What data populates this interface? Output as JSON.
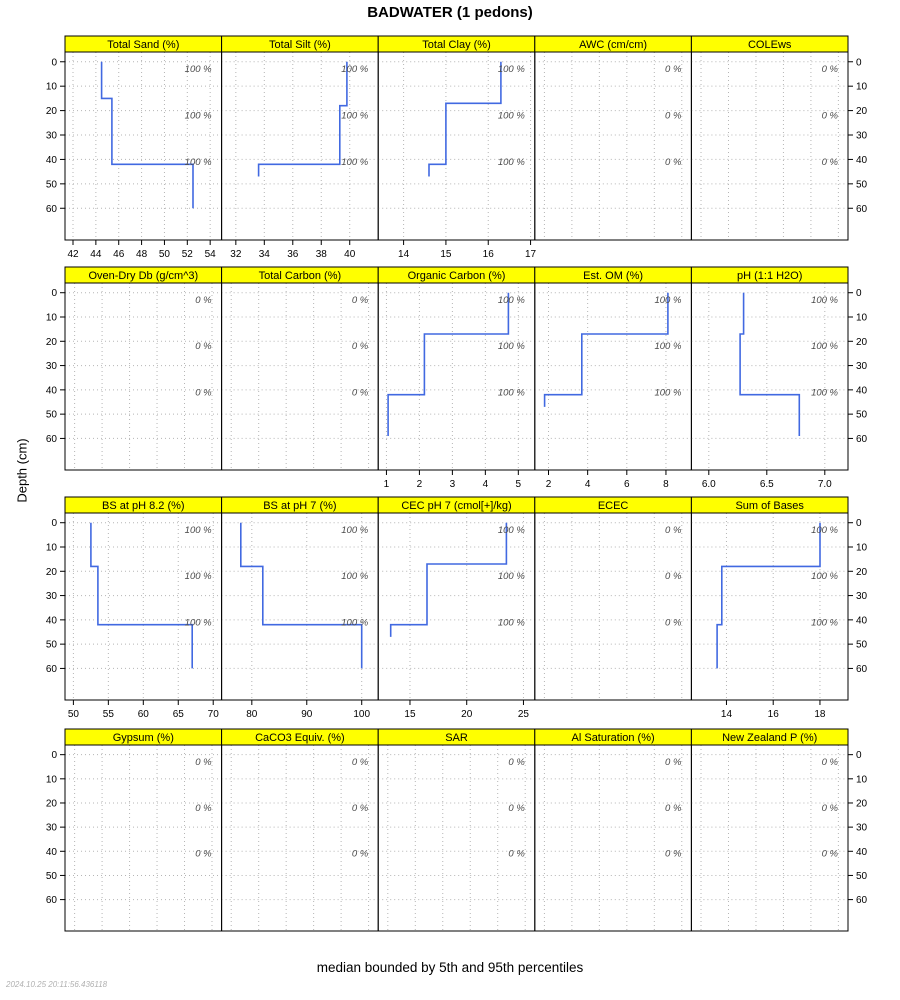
{
  "title": "BADWATER (1 pedons)",
  "ylabel": "Depth (cm)",
  "caption": "median bounded by 5th and 95th percentiles",
  "timestamp": "2024.10.25 20:11:56.436118",
  "colors": {
    "line": "#4169E1",
    "strip_bg": "#FFFF00",
    "grid": "#b5b5b5"
  },
  "chart_data": {
    "type": "line",
    "orientation": "depth-profile",
    "ylim": [
      -4,
      73
    ],
    "depth_ticks": [
      0,
      10,
      20,
      30,
      40,
      50,
      60
    ],
    "label_depths": [
      3,
      22,
      41
    ],
    "rows": [
      {
        "panels": [
          {
            "title": "Total Sand (%)",
            "xticks": [
              "42",
              "44",
              "46",
              "48",
              "50",
              "52",
              "54"
            ],
            "xgrid": [
              42,
              44,
              46,
              48,
              50,
              52,
              54
            ],
            "xlim": [
              41.3,
              55.0
            ],
            "label": "100 %",
            "profile": [
              {
                "top": 0,
                "bottom": 15,
                "value": 44.5
              },
              {
                "top": 15,
                "bottom": 42,
                "value": 45.4
              },
              {
                "top": 42,
                "bottom": 60,
                "value": 52.5
              }
            ]
          },
          {
            "title": "Total Silt (%)",
            "xticks": [
              "32",
              "34",
              "36",
              "38",
              "40"
            ],
            "xgrid": [
              32,
              34,
              36,
              38,
              40
            ],
            "xlim": [
              31.0,
              42.0
            ],
            "label": "100 %",
            "profile": [
              {
                "top": 0,
                "bottom": 18,
                "value": 39.8
              },
              {
                "top": 18,
                "bottom": 42,
                "value": 39.3
              },
              {
                "top": 42,
                "bottom": 47,
                "value": 33.6
              }
            ]
          },
          {
            "title": "Total Clay (%)",
            "xticks": [
              "14",
              "15",
              "16",
              "17"
            ],
            "xgrid": [
              14,
              15,
              16,
              17
            ],
            "xlim": [
              13.4,
              17.1
            ],
            "label": "100 %",
            "profile": [
              {
                "top": 0,
                "bottom": 17,
                "value": 16.3
              },
              {
                "top": 17,
                "bottom": 42,
                "value": 15.0
              },
              {
                "top": 42,
                "bottom": 47,
                "value": 14.6
              }
            ]
          },
          {
            "title": "AWC (cm/cm)",
            "xticks": [],
            "xgrid": [
              0,
              0.2,
              0.4,
              0.6,
              0.8,
              1
            ],
            "xlim": [
              -0.07,
              1.07
            ],
            "label": "0 %",
            "profile": []
          },
          {
            "title": "COLEws",
            "xticks": [],
            "xgrid": [
              0,
              0.2,
              0.4,
              0.6,
              0.8,
              1
            ],
            "xlim": [
              -0.07,
              1.07
            ],
            "label": "0 %",
            "profile": []
          }
        ]
      },
      {
        "panels": [
          {
            "title": "Oven-Dry Db (g/cm^3)",
            "xticks": [],
            "xgrid": [
              0,
              0.2,
              0.4,
              0.6,
              0.8,
              1
            ],
            "xlim": [
              -0.07,
              1.07
            ],
            "label": "0 %",
            "profile": []
          },
          {
            "title": "Total Carbon (%)",
            "xticks": [],
            "xgrid": [
              0,
              0.2,
              0.4,
              0.6,
              0.8,
              1
            ],
            "xlim": [
              -0.07,
              1.07
            ],
            "label": "0 %",
            "profile": []
          },
          {
            "title": "Organic Carbon (%)",
            "xticks": [
              "1",
              "2",
              "3",
              "4",
              "5"
            ],
            "xgrid": [
              1,
              2,
              3,
              4,
              5
            ],
            "xlim": [
              0.75,
              5.5
            ],
            "label": "100 %",
            "profile": [
              {
                "top": 0,
                "bottom": 17,
                "value": 4.7
              },
              {
                "top": 17,
                "bottom": 42,
                "value": 2.15
              },
              {
                "top": 42,
                "bottom": 59,
                "value": 1.05
              }
            ]
          },
          {
            "title": "Est. OM (%)",
            "xticks": [
              "2",
              "4",
              "6",
              "8"
            ],
            "xgrid": [
              2,
              4,
              6,
              8
            ],
            "xlim": [
              1.3,
              9.3
            ],
            "label": "100 %",
            "profile": [
              {
                "top": 0,
                "bottom": 17,
                "value": 8.1
              },
              {
                "top": 17,
                "bottom": 42,
                "value": 3.7
              },
              {
                "top": 42,
                "bottom": 47,
                "value": 1.8
              }
            ]
          },
          {
            "title": "pH (1:1 H2O)",
            "xticks": [
              "6.0",
              "6.5",
              "7.0"
            ],
            "xgrid": [
              6.0,
              6.5,
              7.0
            ],
            "xlim": [
              5.85,
              7.2
            ],
            "label": "100 %",
            "profile": [
              {
                "top": 0,
                "bottom": 17,
                "value": 6.3
              },
              {
                "top": 17,
                "bottom": 42,
                "value": 6.27
              },
              {
                "top": 42,
                "bottom": 59,
                "value": 6.78
              }
            ]
          }
        ]
      },
      {
        "panels": [
          {
            "title": "BS at pH 8.2 (%)",
            "xticks": [
              "50",
              "55",
              "60",
              "65",
              "70"
            ],
            "xgrid": [
              50,
              55,
              60,
              65,
              70
            ],
            "xlim": [
              48.8,
              71.2
            ],
            "label": "100 %",
            "profile": [
              {
                "top": 0,
                "bottom": 18,
                "value": 52.5
              },
              {
                "top": 18,
                "bottom": 42,
                "value": 53.5
              },
              {
                "top": 42,
                "bottom": 60,
                "value": 67.0
              }
            ]
          },
          {
            "title": "BS at pH 7 (%)",
            "xticks": [
              "80",
              "90",
              "100"
            ],
            "xgrid": [
              80,
              90,
              100
            ],
            "xlim": [
              74.5,
              103.0
            ],
            "label": "100 %",
            "profile": [
              {
                "top": 0,
                "bottom": 18,
                "value": 78.0
              },
              {
                "top": 18,
                "bottom": 42,
                "value": 82.0
              },
              {
                "top": 42,
                "bottom": 60,
                "value": 100.0
              }
            ]
          },
          {
            "title": "CEC pH 7 (cmol[+]/kg)",
            "xticks": [
              "15",
              "20",
              "25"
            ],
            "xgrid": [
              15,
              20,
              25
            ],
            "xlim": [
              12.2,
              26.0
            ],
            "label": "100 %",
            "profile": [
              {
                "top": 0,
                "bottom": 17,
                "value": 23.5
              },
              {
                "top": 17,
                "bottom": 42,
                "value": 16.5
              },
              {
                "top": 42,
                "bottom": 47,
                "value": 13.3
              }
            ]
          },
          {
            "title": "ECEC",
            "xticks": [],
            "xgrid": [
              0,
              0.2,
              0.4,
              0.6,
              0.8,
              1
            ],
            "xlim": [
              -0.07,
              1.07
            ],
            "label": "0 %",
            "profile": []
          },
          {
            "title": "Sum of Bases",
            "xticks": [
              "14",
              "16",
              "18"
            ],
            "xgrid": [
              14,
              16,
              18
            ],
            "xlim": [
              12.5,
              19.2
            ],
            "label": "100 %",
            "profile": [
              {
                "top": 0,
                "bottom": 18,
                "value": 18.0
              },
              {
                "top": 18,
                "bottom": 42,
                "value": 13.8
              },
              {
                "top": 42,
                "bottom": 60,
                "value": 13.6
              }
            ]
          }
        ]
      },
      {
        "panels": [
          {
            "title": "Gypsum (%)",
            "xticks": [],
            "xgrid": [
              0,
              0.2,
              0.4,
              0.6,
              0.8,
              1
            ],
            "xlim": [
              -0.07,
              1.07
            ],
            "label": "0 %",
            "profile": []
          },
          {
            "title": "CaCO3 Equiv. (%)",
            "xticks": [],
            "xgrid": [
              0,
              0.2,
              0.4,
              0.6,
              0.8,
              1
            ],
            "xlim": [
              -0.07,
              1.07
            ],
            "label": "0 %",
            "profile": []
          },
          {
            "title": "SAR",
            "xticks": [],
            "xgrid": [
              0,
              0.2,
              0.4,
              0.6,
              0.8,
              1
            ],
            "xlim": [
              -0.07,
              1.07
            ],
            "label": "0 %",
            "profile": []
          },
          {
            "title": "Al Saturation (%)",
            "xticks": [],
            "xgrid": [
              0,
              0.2,
              0.4,
              0.6,
              0.8,
              1
            ],
            "xlim": [
              -0.07,
              1.07
            ],
            "label": "0 %",
            "profile": []
          },
          {
            "title": "New Zealand P (%)",
            "xticks": [],
            "xgrid": [
              0,
              0.2,
              0.4,
              0.6,
              0.8,
              1
            ],
            "xlim": [
              -0.07,
              1.07
            ],
            "label": "0 %",
            "profile": []
          }
        ]
      }
    ]
  }
}
